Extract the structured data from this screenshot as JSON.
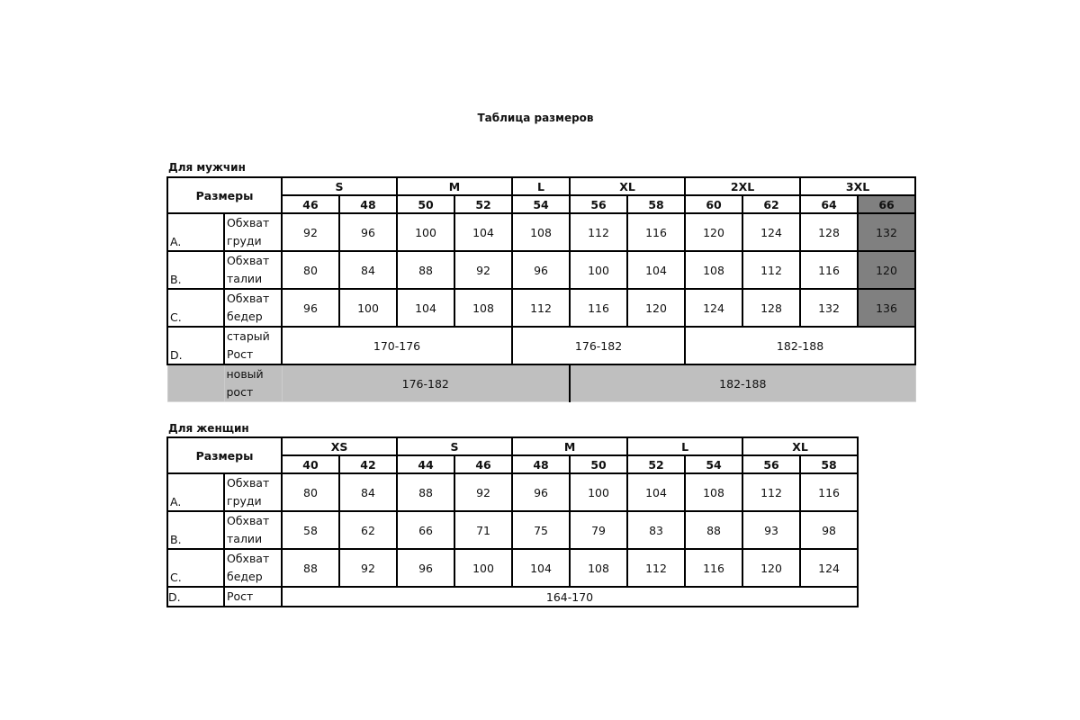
{
  "title": "Таблица размеров",
  "men": {
    "heading": "Для мужчин",
    "sizes_label": "Размеры",
    "groups": [
      {
        "label": "S",
        "span": 2
      },
      {
        "label": "M",
        "span": 2
      },
      {
        "label": "L",
        "span": 1
      },
      {
        "label": "XL",
        "span": 2
      },
      {
        "label": "2XL",
        "span": 2
      },
      {
        "label": "3XL",
        "span": 2
      }
    ],
    "sizes": [
      "46",
      "48",
      "50",
      "52",
      "54",
      "56",
      "58",
      "60",
      "62",
      "64",
      "66"
    ],
    "highlight_size": "66",
    "rows": [
      {
        "letter": "A.",
        "name": "Обхват груди",
        "values": [
          "92",
          "96",
          "100",
          "104",
          "108",
          "112",
          "116",
          "120",
          "124",
          "128",
          "132"
        ]
      },
      {
        "letter": "B.",
        "name": "Обхват талии",
        "values": [
          "80",
          "84",
          "88",
          "92",
          "96",
          "100",
          "104",
          "108",
          "112",
          "116",
          "120"
        ]
      },
      {
        "letter": "C.",
        "name": "Обхват бедер",
        "values": [
          "96",
          "100",
          "104",
          "108",
          "112",
          "116",
          "120",
          "124",
          "128",
          "132",
          "136"
        ]
      }
    ],
    "height_old": {
      "letter": "D.",
      "name": "старый Рост",
      "ranges": [
        {
          "label": "170-176",
          "span": 4
        },
        {
          "label": "176-182",
          "span": 3
        },
        {
          "label": "182-188",
          "span": 4
        }
      ]
    },
    "height_new": {
      "letter": "",
      "name": "новый рост",
      "ranges": [
        {
          "label": "176-182",
          "span": 5
        },
        {
          "label": "182-188",
          "span": 6
        }
      ]
    },
    "colors": {
      "highlight": "#808080",
      "new_row": "#bfbfbf"
    }
  },
  "women": {
    "heading": "Для женщин",
    "sizes_label": "Размеры",
    "groups": [
      {
        "label": "XS",
        "span": 2
      },
      {
        "label": "S",
        "span": 2
      },
      {
        "label": "M",
        "span": 2
      },
      {
        "label": "L",
        "span": 2
      },
      {
        "label": "XL",
        "span": 2
      }
    ],
    "sizes": [
      "40",
      "42",
      "44",
      "46",
      "48",
      "50",
      "52",
      "54",
      "56",
      "58"
    ],
    "rows": [
      {
        "letter": "A.",
        "name": "Обхват груди",
        "values": [
          "80",
          "84",
          "88",
          "92",
          "96",
          "100",
          "104",
          "108",
          "112",
          "116"
        ]
      },
      {
        "letter": "B.",
        "name": "Обхват талии",
        "values": [
          "58",
          "62",
          "66",
          "71",
          "75",
          "79",
          "83",
          "88",
          "93",
          "98"
        ]
      },
      {
        "letter": "C.",
        "name": "Обхват бедер",
        "values": [
          "88",
          "92",
          "96",
          "100",
          "104",
          "108",
          "112",
          "116",
          "120",
          "124"
        ]
      }
    ],
    "height": {
      "letter": "D.",
      "name": "Рост",
      "ranges": [
        {
          "label": "164-170",
          "span": 10
        }
      ]
    }
  }
}
